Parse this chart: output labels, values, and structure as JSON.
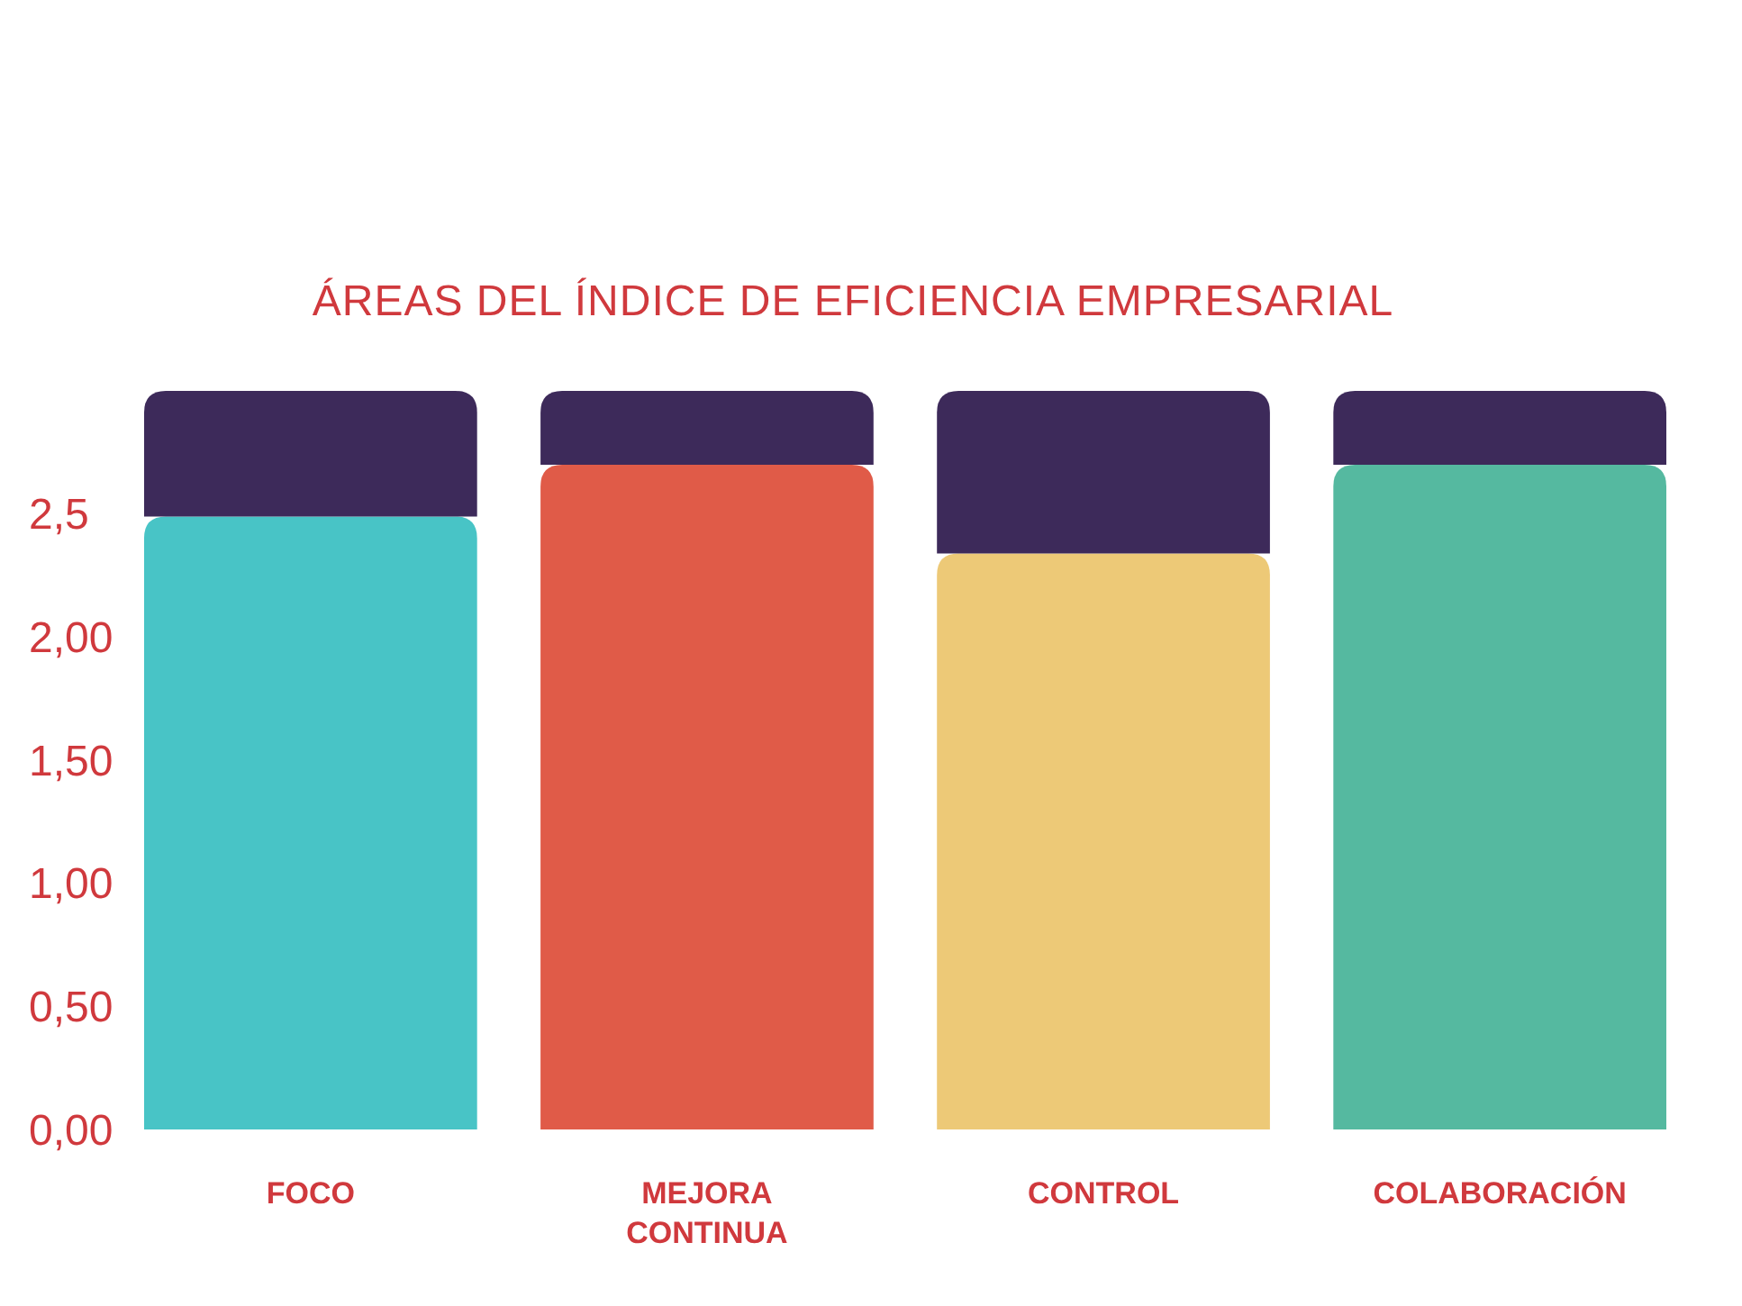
{
  "chart_data": {
    "type": "bar",
    "title": "ÁREAS DEL ÍNDICE DE EFICIENCIA EMPRESARIAL",
    "categories": [
      "FOCO",
      "MEJORA CONTINUA",
      "CONTROL",
      "COLABORACIÓN"
    ],
    "stacked": true,
    "series": [
      {
        "colors": [
          "#48c4c6",
          "#e05b48",
          "#edc977",
          "#55b9a0"
        ],
        "values": [
          2.49,
          2.7,
          2.34,
          2.7
        ]
      },
      {
        "color": "#3d2a5a",
        "values": [
          0.51,
          0.3,
          0.66,
          0.3
        ]
      }
    ],
    "ylim": [
      0,
      3
    ],
    "yticks": [
      {
        "value": 0,
        "label": "0,00"
      },
      {
        "value": 0.5,
        "label": "0,50"
      },
      {
        "value": 1,
        "label": "1,00"
      },
      {
        "value": 1.5,
        "label": "1,50"
      },
      {
        "value": 2,
        "label": "2,00"
      },
      {
        "value": 2.5,
        "label": "2,5"
      }
    ],
    "grid": false
  }
}
